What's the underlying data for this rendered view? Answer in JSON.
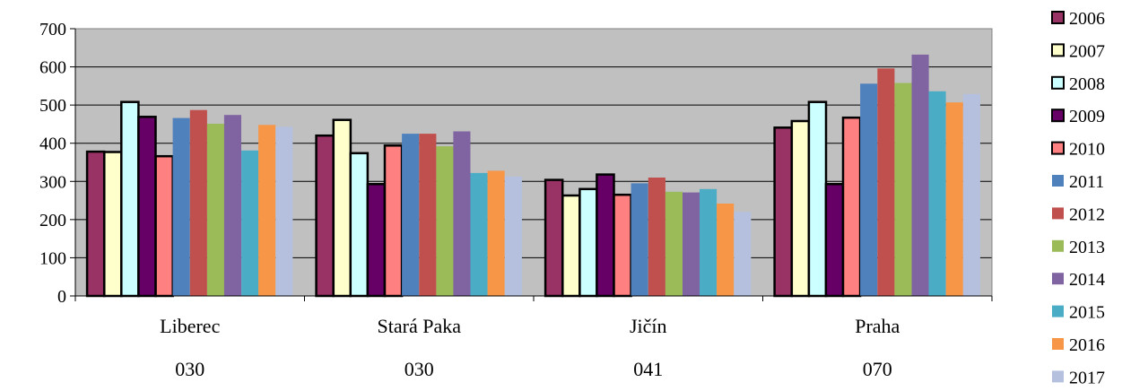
{
  "chart_data": {
    "type": "bar",
    "title": "",
    "xlabel": "",
    "ylabel": "",
    "ylim": [
      0,
      700
    ],
    "yticks": [
      0,
      100,
      200,
      300,
      400,
      500,
      600,
      700
    ],
    "grid": true,
    "legend_position": "right",
    "plot_background": "#c0c0c0",
    "categories": [
      "Liberec",
      "Stará Paka",
      "Jičín",
      "Praha"
    ],
    "category_codes": [
      "030",
      "030",
      "041",
      "070"
    ],
    "series": [
      {
        "name": "2006",
        "color": "#993366",
        "outlined": true,
        "values": [
          378,
          420,
          304,
          441
        ]
      },
      {
        "name": "2007",
        "color": "#ffffcc",
        "outlined": true,
        "values": [
          377,
          461,
          263,
          458
        ]
      },
      {
        "name": "2008",
        "color": "#ccffff",
        "outlined": true,
        "values": [
          508,
          374,
          280,
          508
        ]
      },
      {
        "name": "2009",
        "color": "#660066",
        "outlined": true,
        "values": [
          469,
          293,
          318,
          293
        ]
      },
      {
        "name": "2010",
        "color": "#ff8080",
        "outlined": true,
        "values": [
          366,
          394,
          265,
          467
        ]
      },
      {
        "name": "2011",
        "color": "#4f81bd",
        "outlined": false,
        "values": [
          466,
          425,
          295,
          556
        ]
      },
      {
        "name": "2012",
        "color": "#c0504d",
        "outlined": false,
        "values": [
          487,
          425,
          310,
          596
        ]
      },
      {
        "name": "2013",
        "color": "#9bbb59",
        "outlined": false,
        "values": [
          451,
          392,
          273,
          558
        ]
      },
      {
        "name": "2014",
        "color": "#8064a2",
        "outlined": false,
        "values": [
          474,
          431,
          271,
          632
        ]
      },
      {
        "name": "2015",
        "color": "#4bacc6",
        "outlined": false,
        "values": [
          381,
          322,
          280,
          536
        ]
      },
      {
        "name": "2016",
        "color": "#f79646",
        "outlined": false,
        "values": [
          448,
          328,
          242,
          507
        ]
      },
      {
        "name": "2017",
        "color": "#b4c0de",
        "outlined": false,
        "values": [
          443,
          313,
          220,
          529
        ]
      }
    ]
  }
}
